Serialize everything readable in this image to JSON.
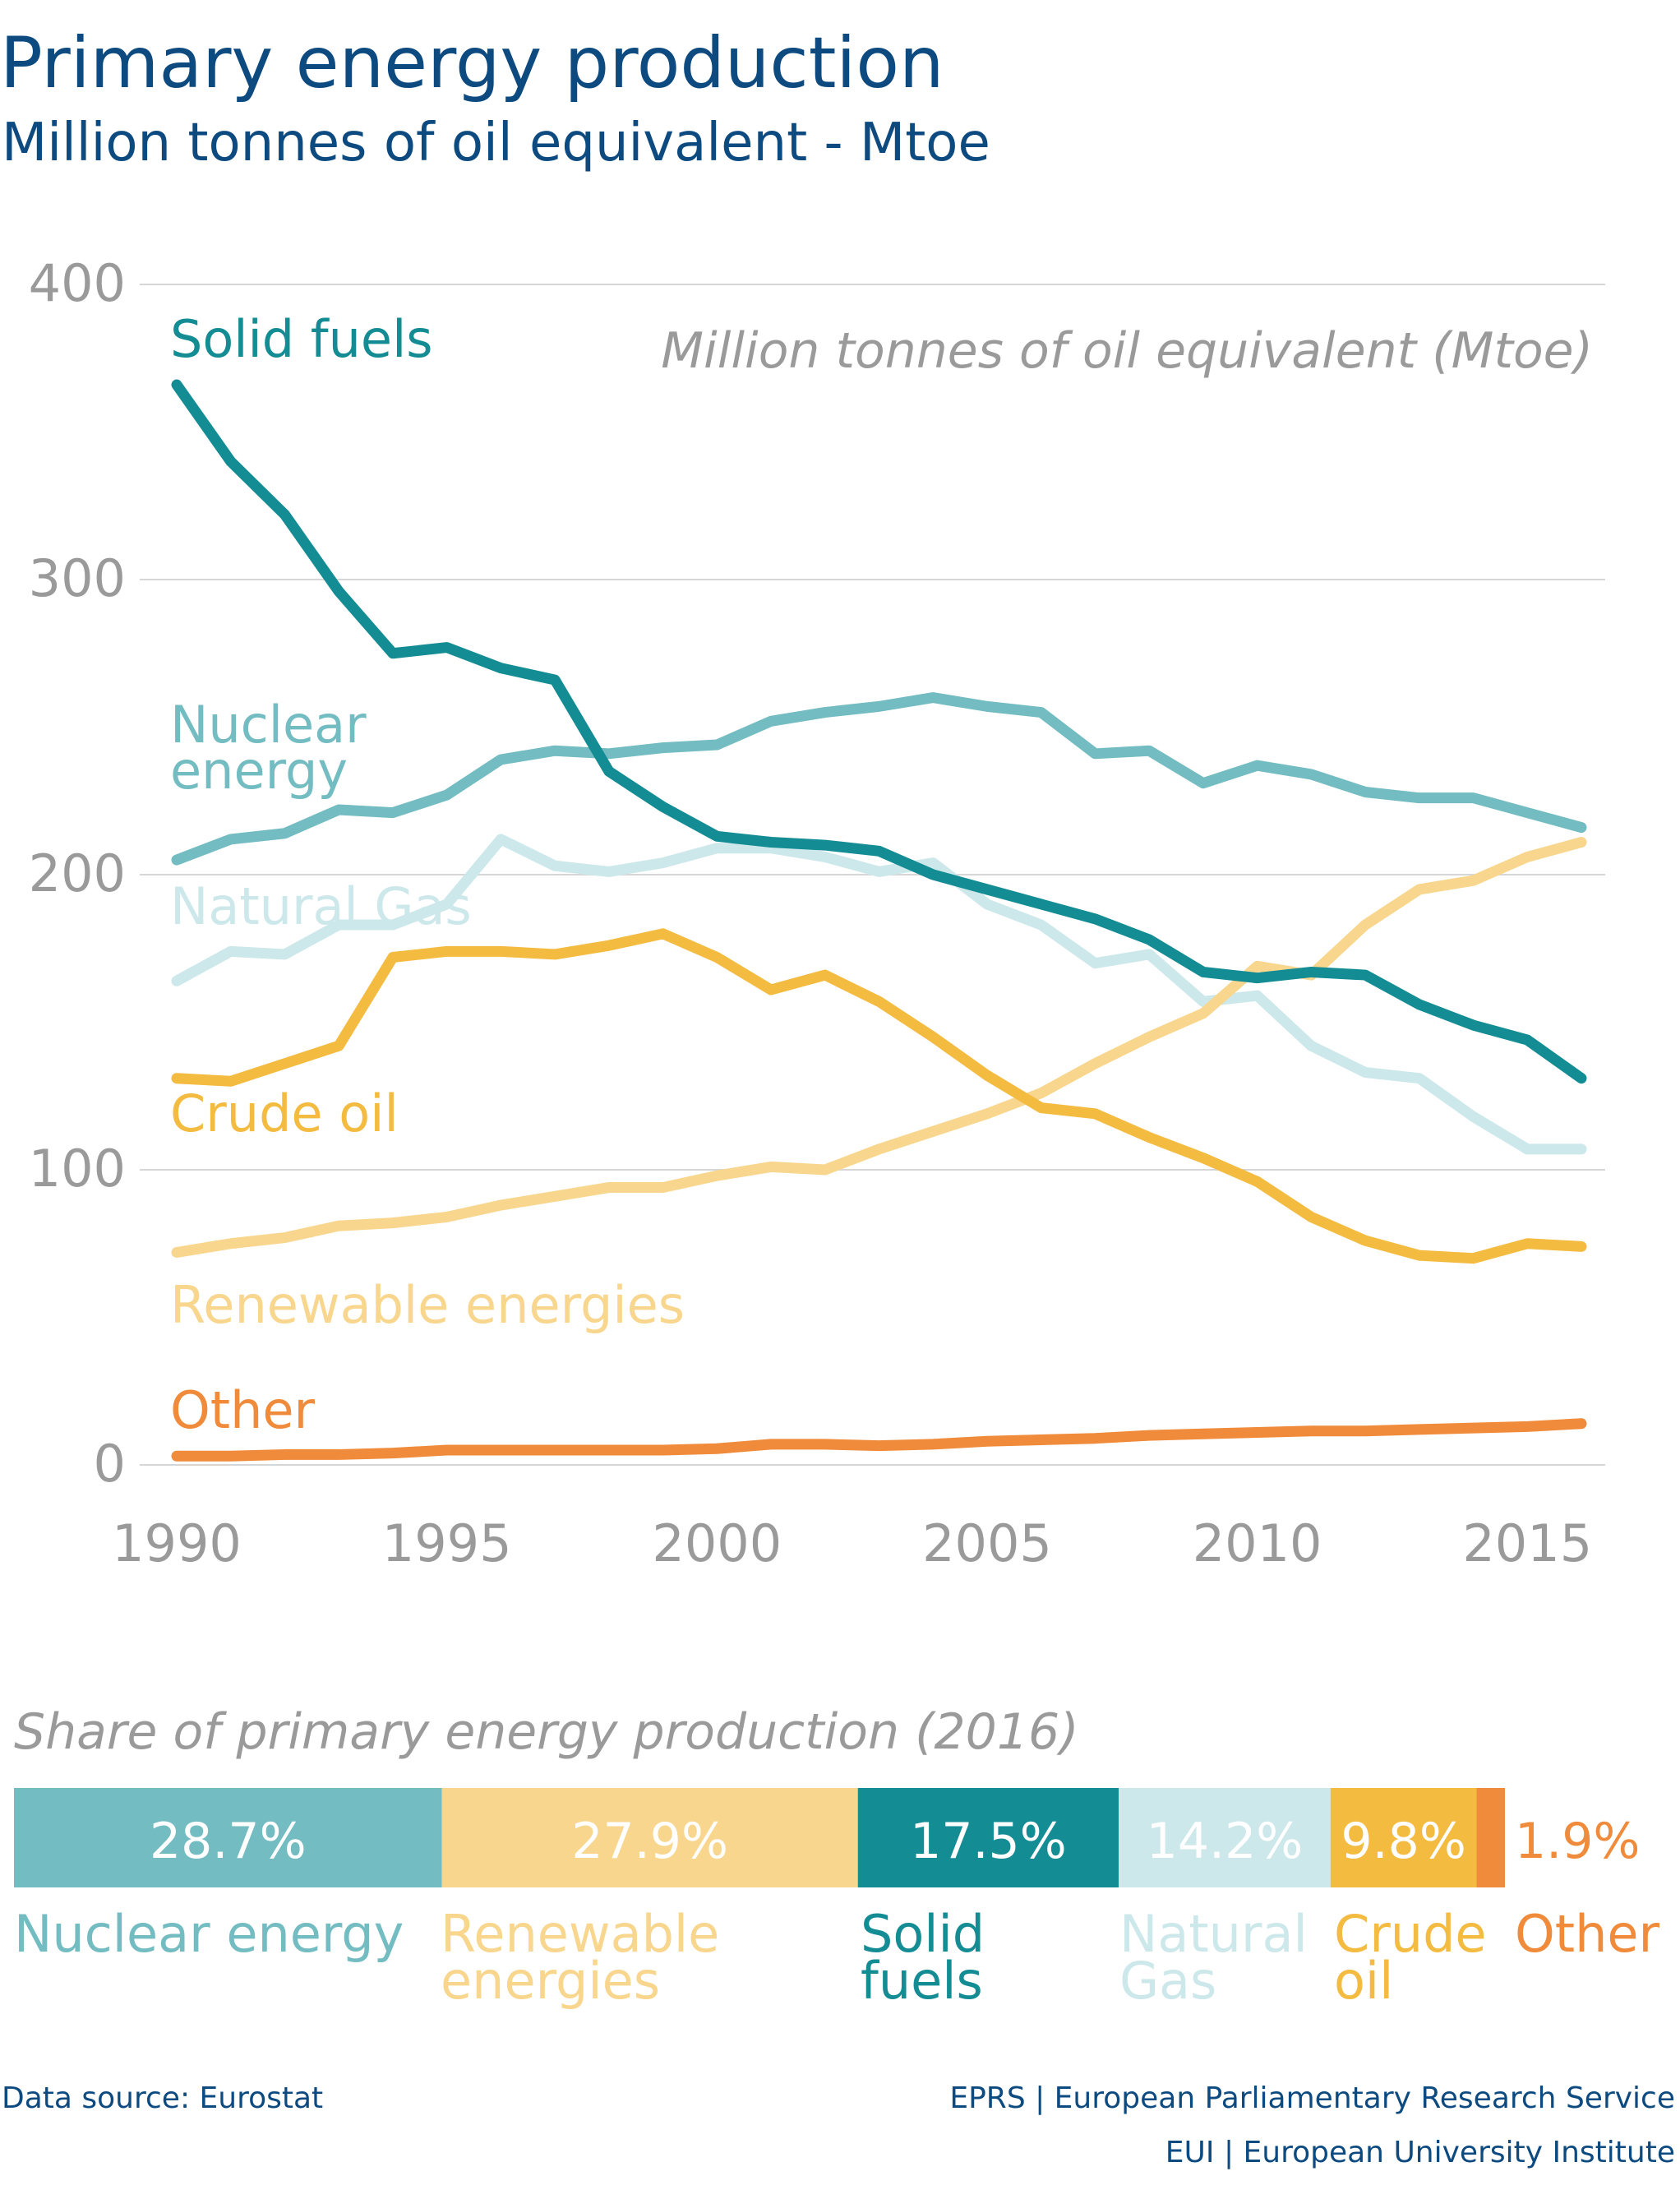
{
  "header": {
    "title": "Primary energy production",
    "subtitle": "Million tonnes of oil equivalent - Mtoe"
  },
  "colors": {
    "title": "#0d4a80",
    "axis_text": "#9a9a9a",
    "grid": "#d6d6d6",
    "solid_fuels": "#138c94",
    "nuclear": "#73bcc1",
    "natural_gas": "#cde8ea",
    "crude_oil": "#f4bb41",
    "renewable": "#f8d68d",
    "other": "#ef8b3a"
  },
  "chart_data": [
    {
      "type": "line",
      "annotation": "Million tonnes of oil equivalent (Mtoe)",
      "xlabel": "",
      "ylabel": "",
      "ylim": [
        0,
        400
      ],
      "xlim": [
        1990,
        2016
      ],
      "grid": true,
      "y_ticks": [
        "0",
        "100",
        "200",
        "300",
        "400"
      ],
      "x_ticks": [
        "1990",
        "1995",
        "2000",
        "2005",
        "2010",
        "2015"
      ],
      "x": [
        1990,
        1991,
        1992,
        1993,
        1994,
        1995,
        1996,
        1997,
        1998,
        1999,
        2000,
        2001,
        2002,
        2003,
        2004,
        2005,
        2006,
        2007,
        2008,
        2009,
        2010,
        2011,
        2012,
        2013,
        2014,
        2015,
        2016
      ],
      "series": [
        {
          "name": "Solid fuels",
          "label_lines": [
            "Solid fuels"
          ],
          "color_key": "solid_fuels",
          "values": [
            366,
            340,
            322,
            296,
            275,
            277,
            270,
            266,
            235,
            223,
            213,
            211,
            210,
            208,
            200,
            195,
            190,
            185,
            178,
            167,
            165,
            167,
            166,
            156,
            149,
            144,
            131
          ]
        },
        {
          "name": "Nuclear energy",
          "label_lines": [
            "Nuclear",
            "energy"
          ],
          "color_key": "nuclear",
          "values": [
            205,
            212,
            214,
            222,
            221,
            227,
            239,
            242,
            241,
            243,
            244,
            252,
            255,
            257,
            260,
            257,
            255,
            241,
            242,
            231,
            237,
            234,
            228,
            226,
            226,
            221,
            216
          ]
        },
        {
          "name": "Natural Gas",
          "label_lines": [
            "Natural Gas"
          ],
          "color_key": "natural_gas",
          "values": [
            164,
            174,
            173,
            183,
            183,
            190,
            212,
            203,
            201,
            204,
            209,
            209,
            206,
            201,
            204,
            190,
            183,
            170,
            173,
            157,
            159,
            142,
            133,
            131,
            118,
            107,
            107
          ]
        },
        {
          "name": "Crude oil",
          "label_lines": [
            "Crude oil"
          ],
          "color_key": "crude_oil",
          "values": [
            131,
            130,
            136,
            142,
            172,
            174,
            174,
            173,
            176,
            180,
            172,
            161,
            166,
            157,
            145,
            132,
            121,
            119,
            111,
            104,
            96,
            84,
            76,
            71,
            70,
            75,
            74
          ]
        },
        {
          "name": "Renewable energies",
          "label_lines": [
            "Renewable energies"
          ],
          "color_key": "renewable",
          "values": [
            72,
            75,
            77,
            81,
            82,
            84,
            88,
            91,
            94,
            94,
            98,
            101,
            100,
            107,
            113,
            119,
            126,
            136,
            145,
            153,
            169,
            166,
            183,
            195,
            198,
            206,
            211
          ]
        },
        {
          "name": "Other",
          "label_lines": [
            "Other"
          ],
          "color_key": "other",
          "values": [
            3,
            3,
            3.5,
            3.5,
            4,
            5,
            5,
            5,
            5,
            5,
            5.5,
            7,
            7,
            6.5,
            7,
            8,
            8.5,
            9,
            10,
            10.5,
            11,
            11.5,
            11.5,
            12,
            12.5,
            13,
            14
          ]
        }
      ]
    },
    {
      "type": "bar",
      "orientation": "horizontal-stacked",
      "title": "Share of primary energy production (2016)",
      "unit": "%",
      "categories": [
        "Nuclear energy",
        "Renewable energies",
        "Solid fuels",
        "Natural Gas",
        "Crude oil",
        "Other"
      ],
      "legend_lines": [
        [
          "Nuclear energy"
        ],
        [
          "Renewable",
          "energies"
        ],
        [
          "Solid",
          "fuels"
        ],
        [
          "Natural",
          "Gas"
        ],
        [
          "Crude",
          "oil"
        ],
        [
          "Other"
        ]
      ],
      "values": [
        28.7,
        27.9,
        17.5,
        14.2,
        9.8,
        1.9
      ],
      "value_labels": [
        "28.7%",
        "27.9%",
        "17.5%",
        "14.2%",
        "9.8%",
        "1.9%"
      ],
      "color_keys": [
        "nuclear",
        "renewable",
        "solid_fuels",
        "natural_gas",
        "crude_oil",
        "other"
      ]
    }
  ],
  "footer": {
    "source": "Data source:  Eurostat",
    "credit_1": "EPRS | European Parliamentary Research Service",
    "credit_2": "EUI | European University Institute"
  }
}
